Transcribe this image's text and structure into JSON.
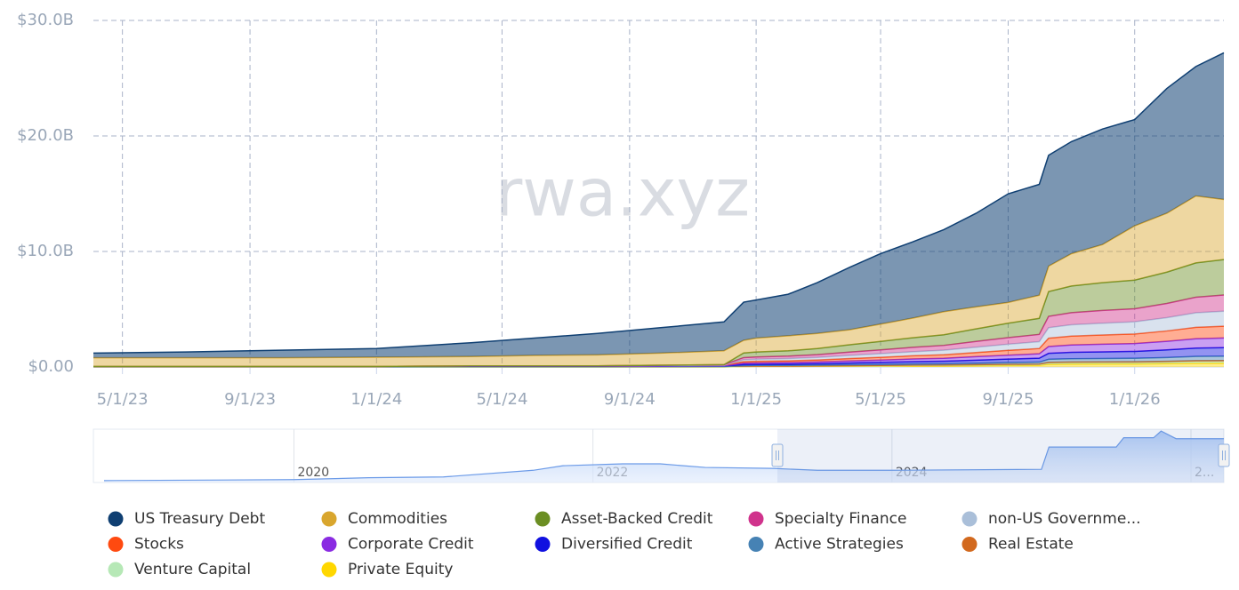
{
  "chart_data": [
    {
      "type": "stacked-area",
      "watermark": "rwa.xyz",
      "x": [
        "4/3/23",
        "7/1/23",
        "10/1/23",
        "1/1/24",
        "4/1/24",
        "6/1/24",
        "8/1/24",
        "10/1/24",
        "12/1/24",
        "12/20/24",
        "1/1/25",
        "2/1/25",
        "3/1/25",
        "4/1/25",
        "5/1/25",
        "6/1/25",
        "7/1/25",
        "8/1/25",
        "9/1/25",
        "10/1/25",
        "10/10/25",
        "11/1/25",
        "12/1/25",
        "1/1/26",
        "2/1/26",
        "3/1/26",
        "3/28/26"
      ],
      "xlim": [
        "4/3/23",
        "3/28/26"
      ],
      "xticks": [
        "5/1/23",
        "9/1/23",
        "1/1/24",
        "5/1/24",
        "9/1/24",
        "1/1/25",
        "5/1/25",
        "9/1/25",
        "1/1/26"
      ],
      "ylim": [
        0,
        30
      ],
      "yticks": [
        {
          "value": 0,
          "label": "$0.00"
        },
        {
          "value": 10,
          "label": "$10.0B"
        },
        {
          "value": 20,
          "label": "$20.0B"
        },
        {
          "value": 30,
          "label": "$30.0B"
        }
      ],
      "grid": true,
      "legend": "bottom",
      "series": [
        {
          "name": "US Treasury Debt",
          "color": "#0f3f72",
          "values": [
            0.4,
            0.5,
            0.65,
            0.75,
            1.2,
            1.5,
            1.85,
            2.2,
            2.5,
            3.3,
            3.3,
            3.6,
            4.4,
            5.4,
            6.1,
            6.6,
            7.1,
            8.1,
            9.4,
            9.6,
            9.6,
            9.7,
            10.0,
            9.2,
            10.8,
            11.2,
            12.7
          ]
        },
        {
          "name": "Commodities",
          "color": "#d9a62e",
          "values": [
            0.75,
            0.75,
            0.75,
            0.8,
            0.8,
            0.9,
            0.95,
            1.05,
            1.2,
            1.1,
            1.2,
            1.3,
            1.3,
            1.3,
            1.5,
            1.7,
            2.0,
            1.9,
            1.8,
            2.0,
            2.2,
            2.8,
            3.3,
            4.7,
            5.1,
            5.8,
            5.2
          ]
        },
        {
          "name": "Asset-Backed Credit",
          "color": "#6b8e23",
          "values": [
            0,
            0,
            0,
            0,
            0,
            0,
            0,
            0,
            0,
            0.4,
            0.43,
            0.46,
            0.53,
            0.63,
            0.73,
            0.83,
            0.92,
            1.09,
            1.25,
            1.39,
            2.15,
            2.31,
            2.41,
            2.48,
            2.71,
            2.97,
            3.07
          ]
        },
        {
          "name": "Specialty Finance",
          "color": "#d0338c",
          "values": [
            0,
            0,
            0,
            0,
            0,
            0,
            0,
            0.02,
            0.04,
            0.18,
            0.2,
            0.21,
            0.24,
            0.29,
            0.33,
            0.38,
            0.42,
            0.5,
            0.57,
            0.63,
            0.98,
            1.05,
            1.1,
            1.13,
            1.23,
            1.35,
            1.4
          ]
        },
        {
          "name": "non-US Governme...",
          "color": "#aabfd9",
          "values": [
            0,
            0,
            0,
            0,
            0,
            0,
            0,
            0,
            0,
            0.17,
            0.18,
            0.2,
            0.22,
            0.27,
            0.31,
            0.35,
            0.39,
            0.46,
            0.53,
            0.59,
            0.91,
            0.98,
            1.02,
            1.05,
            1.15,
            1.26,
            1.3
          ]
        },
        {
          "name": "Stocks",
          "color": "#ff4a10",
          "values": [
            0,
            0,
            0,
            0,
            0.03,
            0.03,
            0.03,
            0.04,
            0.05,
            0.13,
            0.14,
            0.15,
            0.18,
            0.21,
            0.24,
            0.28,
            0.31,
            0.36,
            0.42,
            0.46,
            0.72,
            0.77,
            0.8,
            0.83,
            0.9,
            0.99,
            1.02
          ]
        },
        {
          "name": "Corporate Credit",
          "color": "#8a2be2",
          "values": [
            0,
            0,
            0,
            0,
            0,
            0,
            0,
            0,
            0,
            0.11,
            0.12,
            0.13,
            0.14,
            0.17,
            0.2,
            0.23,
            0.25,
            0.3,
            0.34,
            0.38,
            0.59,
            0.63,
            0.66,
            0.68,
            0.74,
            0.81,
            0.84
          ]
        },
        {
          "name": "Diversified Credit",
          "color": "#1010e0",
          "values": [
            0.03,
            0.03,
            0.03,
            0.03,
            0.04,
            0.04,
            0.04,
            0.05,
            0.06,
            0.1,
            0.1,
            0.11,
            0.13,
            0.15,
            0.18,
            0.2,
            0.22,
            0.26,
            0.3,
            0.34,
            0.52,
            0.56,
            0.58,
            0.6,
            0.66,
            0.72,
            0.74
          ]
        },
        {
          "name": "Active Strategies",
          "color": "#4682b4",
          "values": [
            0,
            0,
            0,
            0,
            0,
            0,
            0,
            0,
            0,
            0.05,
            0.05,
            0.06,
            0.06,
            0.08,
            0.09,
            0.1,
            0.11,
            0.13,
            0.15,
            0.17,
            0.26,
            0.28,
            0.29,
            0.3,
            0.33,
            0.36,
            0.37
          ]
        },
        {
          "name": "Real Estate",
          "color": "#d2691e",
          "values": [
            0.02,
            0.02,
            0.02,
            0.02,
            0.03,
            0.03,
            0.03,
            0.04,
            0.05,
            0.01,
            0.01,
            0.01,
            0.02,
            0.02,
            0.02,
            0.03,
            0.03,
            0.03,
            0.04,
            0.04,
            0.07,
            0.07,
            0.07,
            0.08,
            0.08,
            0.09,
            0.09
          ]
        },
        {
          "name": "Venture Capital",
          "color": "#b6e8b6",
          "values": [
            0,
            0,
            0,
            0,
            0,
            0,
            0,
            0,
            0,
            0.02,
            0.02,
            0.02,
            0.02,
            0.03,
            0.03,
            0.04,
            0.04,
            0.05,
            0.06,
            0.06,
            0.1,
            0.11,
            0.11,
            0.11,
            0.12,
            0.14,
            0.14
          ]
        },
        {
          "name": "Private Equity",
          "color": "#ffd700",
          "values": [
            0,
            0,
            0,
            0,
            0,
            0,
            0,
            0,
            0,
            0.04,
            0.05,
            0.05,
            0.06,
            0.07,
            0.08,
            0.09,
            0.1,
            0.12,
            0.13,
            0.15,
            0.23,
            0.25,
            0.26,
            0.26,
            0.29,
            0.32,
            0.33
          ]
        }
      ]
    },
    {
      "type": "navigator",
      "x": [
        2018.73,
        2020.0,
        2020.5,
        2021.0,
        2021.6,
        2021.8,
        2022.2,
        2022.45,
        2022.75,
        2023.2,
        2023.5,
        2024.0,
        2025.0,
        2025.05,
        2025.5,
        2025.55,
        2025.75,
        2025.8,
        2025.9,
        2026.22
      ],
      "values": [
        1.0,
        1.5,
        2.5,
        2.9,
        6.4,
        8.8,
        9.8,
        9.8,
        7.9,
        7.4,
        6.4,
        6.4,
        6.9,
        18.6,
        18.6,
        23.5,
        23.5,
        27,
        23,
        23
      ],
      "color": "#6c9be8",
      "xlim": [
        2018.73,
        2026.22
      ],
      "ylim": [
        0,
        28
      ],
      "xticks": [
        2020,
        2022,
        2024,
        {
          "value": 2026,
          "label": "2..."
        }
      ]
    }
  ]
}
